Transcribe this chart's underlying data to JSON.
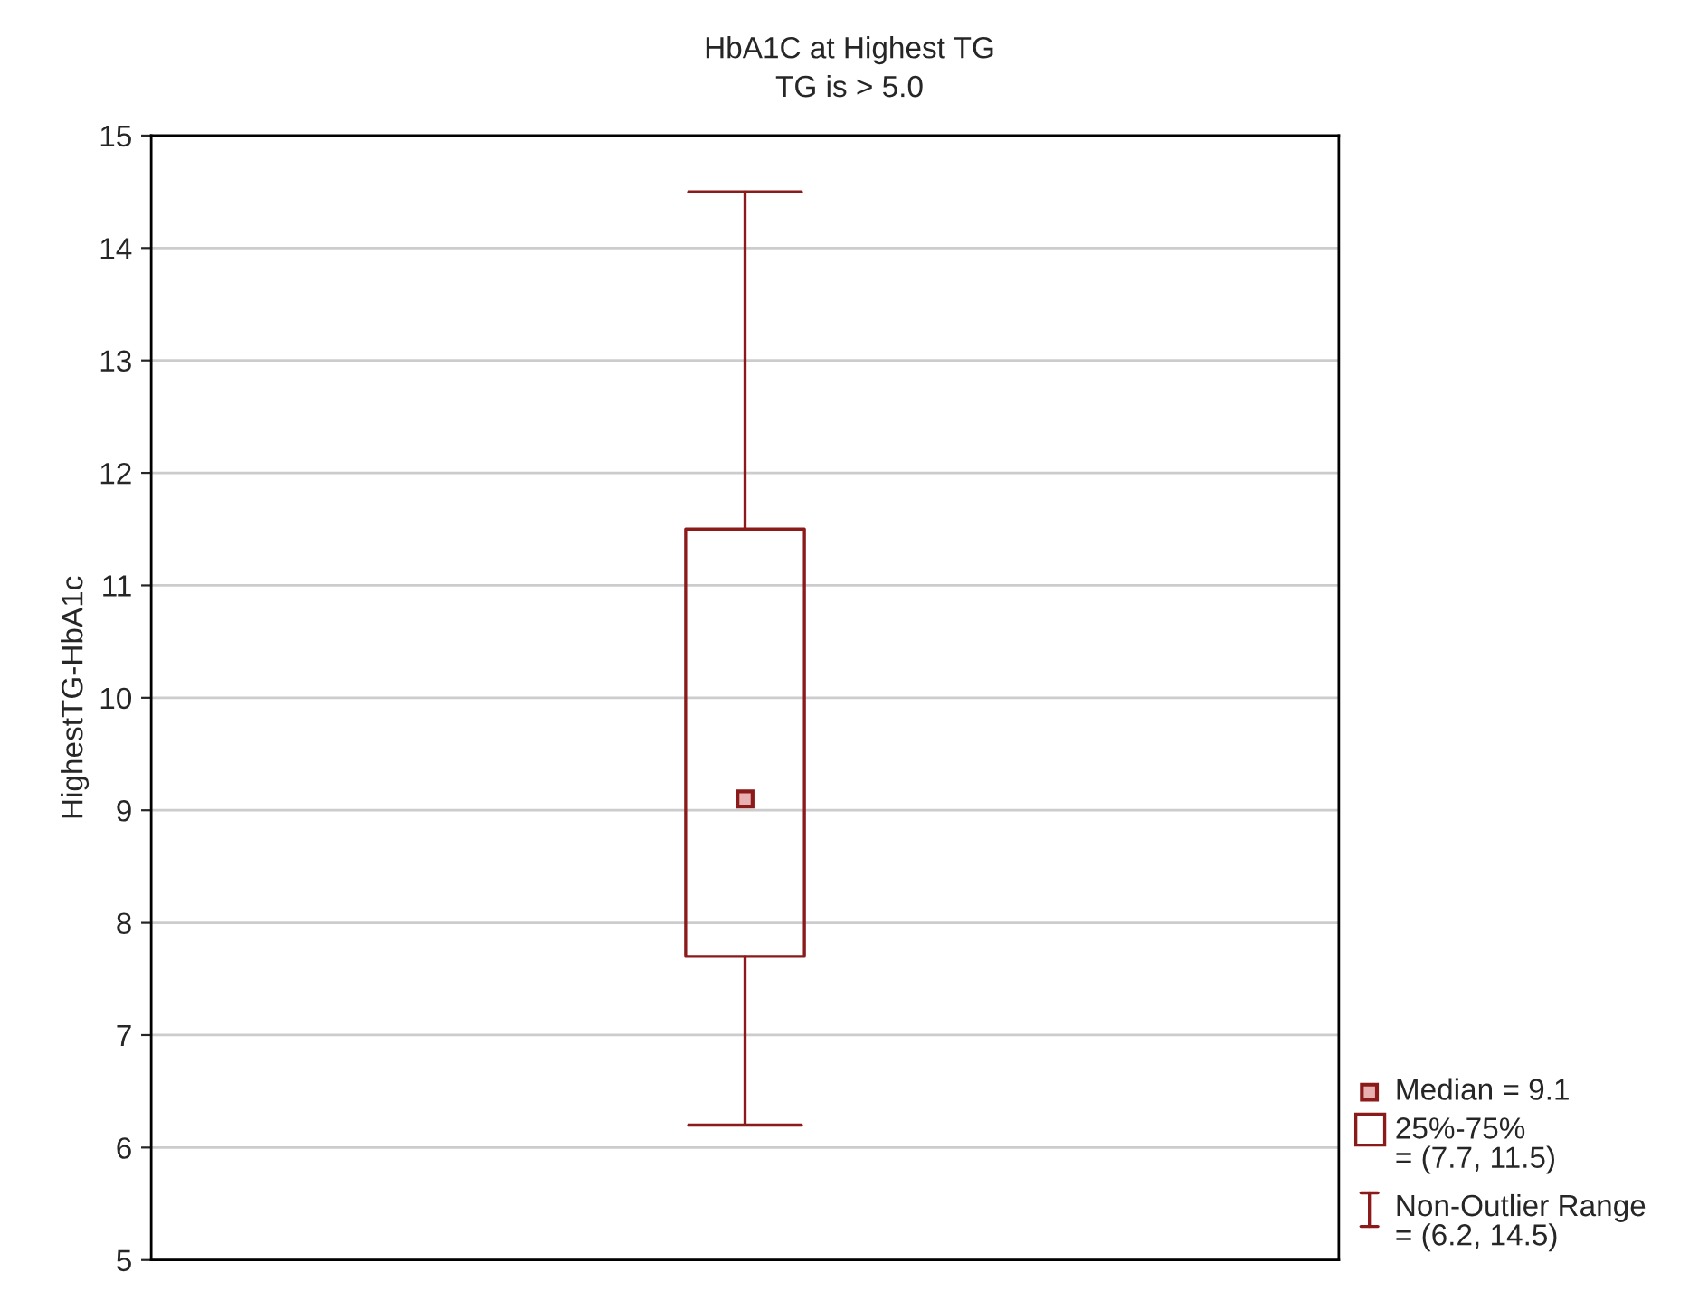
{
  "chart_data": {
    "type": "box",
    "title": "HbA1C at Highest TG",
    "subtitle": "TG is > 5.0",
    "ylabel": "HighestTG-HbA1c",
    "categories": [
      null
    ],
    "boxes": [
      {
        "low": 6.2,
        "q1": 7.7,
        "median": 9.1,
        "q3": 11.5,
        "high": 14.5
      }
    ],
    "color": "#8b1a1a",
    "marker": "square",
    "ylim": [
      5,
      15
    ],
    "yticks": [
      5,
      6,
      7,
      8,
      9,
      10,
      11,
      12,
      13,
      14,
      15
    ],
    "grid": "y",
    "tick_labels": "y",
    "annotations": [
      "Median = 9.1",
      "25%-75%\n= (7.7, 11.5)",
      "Non-Outlier Range\n= (6.2, 14.5)"
    ]
  }
}
